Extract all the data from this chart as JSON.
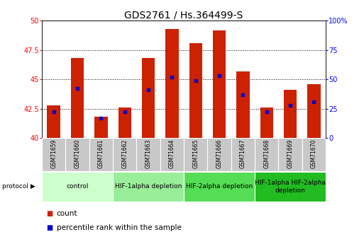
{
  "title": "GDS2761 / Hs.364499-S",
  "samples": [
    "GSM71659",
    "GSM71660",
    "GSM71661",
    "GSM71662",
    "GSM71663",
    "GSM71664",
    "GSM71665",
    "GSM71666",
    "GSM71667",
    "GSM71668",
    "GSM71669",
    "GSM71670"
  ],
  "count_values": [
    42.8,
    46.8,
    41.8,
    42.6,
    46.8,
    49.3,
    48.1,
    49.2,
    45.7,
    42.6,
    44.1,
    44.6
  ],
  "percentile_values": [
    42.2,
    44.2,
    41.7,
    42.2,
    44.1,
    45.2,
    44.9,
    45.3,
    43.7,
    42.2,
    42.8,
    43.1
  ],
  "ylim_left": [
    40,
    50
  ],
  "ylim_right": [
    0,
    100
  ],
  "yticks_left": [
    40,
    42.5,
    45,
    47.5,
    50
  ],
  "yticks_right": [
    0,
    25,
    50,
    75,
    100
  ],
  "ytick_labels_left": [
    "40",
    "42.5",
    "45",
    "47.5",
    "50"
  ],
  "ytick_labels_right": [
    "0",
    "25",
    "50",
    "75",
    "100%"
  ],
  "bar_color": "#CC2200",
  "marker_color": "#0000CC",
  "background_tick": "#c8c8c8",
  "groups": [
    {
      "label": "control",
      "start": 0,
      "end": 2,
      "color": "#ccffcc"
    },
    {
      "label": "HIF-1alpha depletion",
      "start": 3,
      "end": 5,
      "color": "#99ee99"
    },
    {
      "label": "HIF-2alpha depletion",
      "start": 6,
      "end": 8,
      "color": "#55dd55"
    },
    {
      "label": "HIF-1alpha HIF-2alpha\ndepletion",
      "start": 9,
      "end": 11,
      "color": "#22bb22"
    }
  ],
  "legend_items": [
    {
      "label": "count",
      "color": "#CC2200"
    },
    {
      "label": "percentile rank within the sample",
      "color": "#0000CC"
    }
  ],
  "title_fontsize": 10,
  "tick_fontsize": 7,
  "sample_fontsize": 5.5,
  "proto_fontsize": 6.5,
  "legend_fontsize": 7.5
}
